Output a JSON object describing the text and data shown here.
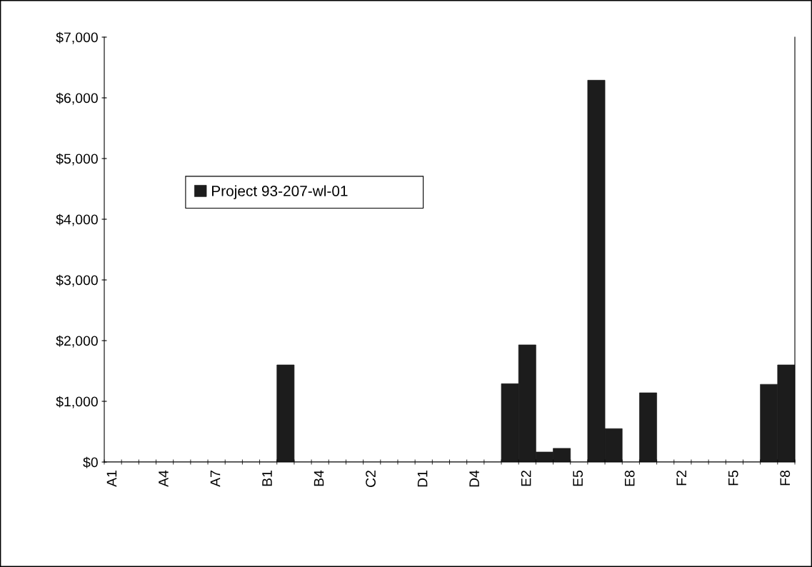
{
  "chart_data": {
    "type": "bar",
    "categories": [
      "A1",
      null,
      null,
      "A4",
      null,
      null,
      "A7",
      null,
      null,
      "B1",
      null,
      null,
      "B4",
      null,
      null,
      "C2",
      null,
      null,
      "D1",
      null,
      null,
      "D4",
      null,
      null,
      "E2",
      null,
      null,
      "E5",
      null,
      null,
      "E8",
      null,
      null,
      "F2",
      null,
      null,
      "F5",
      null,
      null,
      "F8"
    ],
    "series": [
      {
        "name": "Project 93-207-wl-01",
        "color": "#1c1c1c",
        "values": [
          0,
          0,
          0,
          0,
          0,
          0,
          0,
          0,
          0,
          0,
          1600,
          0,
          0,
          0,
          0,
          0,
          0,
          0,
          0,
          0,
          0,
          0,
          0,
          1290,
          1930,
          165,
          225,
          0,
          6290,
          550,
          0,
          1140,
          0,
          0,
          0,
          0,
          0,
          0,
          1280,
          1600
        ]
      }
    ],
    "ylim": [
      0,
      7000
    ],
    "yticks": [
      {
        "value": 0,
        "label": "$0"
      },
      {
        "value": 1000,
        "label": "$1,000"
      },
      {
        "value": 2000,
        "label": "$2,000"
      },
      {
        "value": 3000,
        "label": "$3,000"
      },
      {
        "value": 4000,
        "label": "$4,000"
      },
      {
        "value": 5000,
        "label": "$5,000"
      },
      {
        "value": 6000,
        "label": "$6,000"
      },
      {
        "value": 7000,
        "label": "$7,000"
      }
    ],
    "grid": false,
    "legend": "left"
  }
}
